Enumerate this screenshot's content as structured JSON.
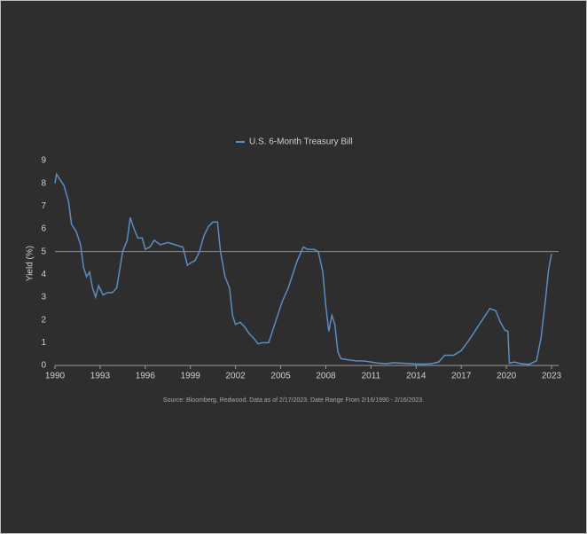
{
  "chart_data": {
    "type": "line",
    "y_label": "Yield (%)",
    "source": "Source: Bloomberg, Redwood. Data as of 2/17/2023. Date Range From 2/16/1990 - 2/16/2023.",
    "x": [
      1990.0,
      1990.1,
      1990.3,
      1990.6,
      1990.9,
      1991.1,
      1991.4,
      1991.7,
      1991.9,
      1992.1,
      1992.3,
      1992.5,
      1992.7,
      1992.9,
      1993.2,
      1993.5,
      1993.8,
      1994.1,
      1994.3,
      1994.5,
      1994.8,
      1995.0,
      1995.2,
      1995.5,
      1995.8,
      1996.0,
      1996.3,
      1996.6,
      1997.0,
      1997.5,
      1998.0,
      1998.5,
      1998.8,
      1999.0,
      1999.3,
      1999.6,
      1999.9,
      2000.2,
      2000.5,
      2000.8,
      2001.0,
      2001.3,
      2001.6,
      2001.8,
      2002.0,
      2002.3,
      2002.6,
      2002.9,
      2003.2,
      2003.5,
      2003.8,
      2004.2,
      2004.5,
      2004.8,
      2005.1,
      2005.5,
      2005.8,
      2006.1,
      2006.5,
      2006.8,
      2007.2,
      2007.5,
      2007.8,
      2008.0,
      2008.2,
      2008.4,
      2008.6,
      2008.8,
      2009.0,
      2009.5,
      2010.0,
      2010.5,
      2011.0,
      2011.5,
      2012.0,
      2012.5,
      2013.0,
      2013.5,
      2014.0,
      2014.5,
      2015.0,
      2015.5,
      2015.9,
      2016.5,
      2017.0,
      2017.5,
      2018.0,
      2018.5,
      2018.9,
      2019.3,
      2019.6,
      2019.9,
      2020.1,
      2020.2,
      2020.5,
      2021.0,
      2021.5,
      2022.0,
      2022.3,
      2022.6,
      2022.8,
      2023.0
    ],
    "series": [
      {
        "name": "U.S. 6-Month Treasury Bill",
        "color": "#5b8cc2",
        "values": [
          8.0,
          8.4,
          8.2,
          7.9,
          7.2,
          6.2,
          5.9,
          5.3,
          4.3,
          3.9,
          4.1,
          3.4,
          3.0,
          3.5,
          3.1,
          3.2,
          3.2,
          3.4,
          4.2,
          5.0,
          5.5,
          6.5,
          6.1,
          5.6,
          5.6,
          5.1,
          5.2,
          5.5,
          5.3,
          5.4,
          5.3,
          5.2,
          4.4,
          4.5,
          4.6,
          5.0,
          5.7,
          6.1,
          6.3,
          6.3,
          5.0,
          3.9,
          3.4,
          2.2,
          1.8,
          1.9,
          1.7,
          1.4,
          1.2,
          0.95,
          1.0,
          1.0,
          1.6,
          2.2,
          2.8,
          3.4,
          4.0,
          4.6,
          5.2,
          5.1,
          5.1,
          5.0,
          4.1,
          2.6,
          1.5,
          2.2,
          1.8,
          0.6,
          0.3,
          0.25,
          0.2,
          0.2,
          0.15,
          0.1,
          0.08,
          0.12,
          0.1,
          0.09,
          0.07,
          0.06,
          0.08,
          0.15,
          0.45,
          0.45,
          0.65,
          1.1,
          1.6,
          2.1,
          2.5,
          2.4,
          1.9,
          1.55,
          1.5,
          0.1,
          0.15,
          0.08,
          0.05,
          0.2,
          1.2,
          2.9,
          4.2,
          4.9
        ]
      }
    ],
    "reference_line": 5,
    "xlim": [
      1990,
      2023
    ],
    "xticks": [
      1990,
      1993,
      1996,
      1999,
      2002,
      2005,
      2008,
      2011,
      2014,
      2017,
      2020,
      2023
    ],
    "ylim": [
      0,
      9
    ],
    "yticks": [
      0,
      1,
      2,
      3,
      4,
      5,
      6,
      7,
      8,
      9
    ]
  }
}
